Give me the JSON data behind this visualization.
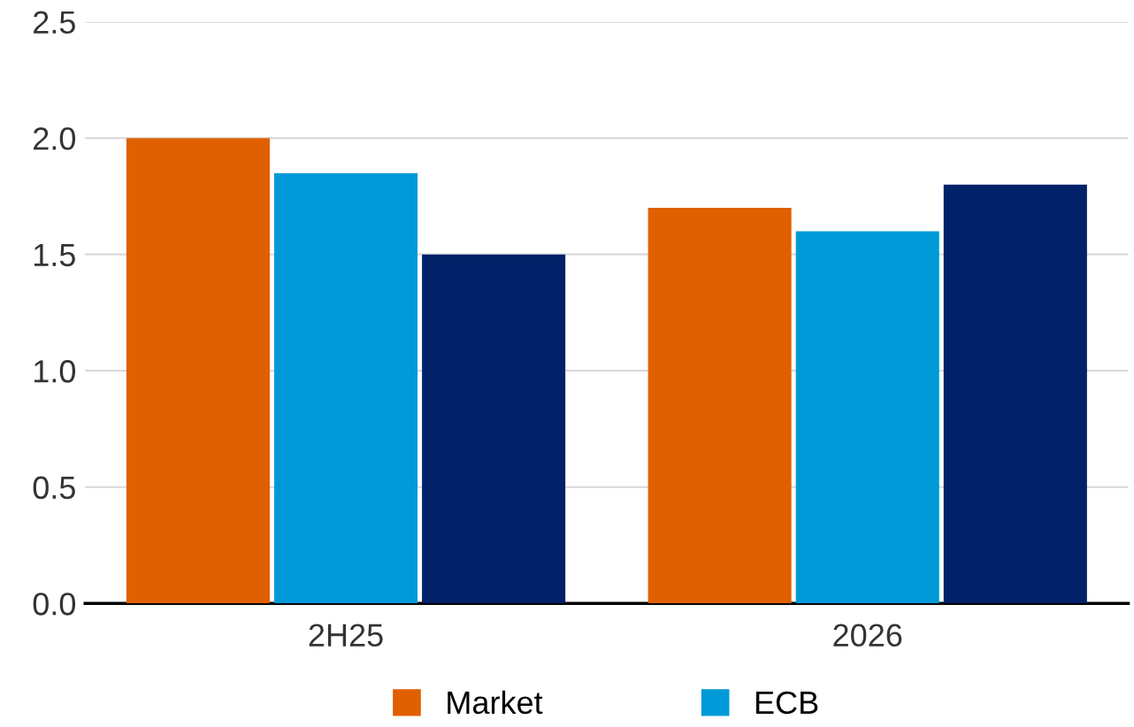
{
  "chart_data": {
    "type": "bar",
    "categories": [
      "2H25",
      "2026"
    ],
    "series": [
      {
        "name": "Market",
        "color": "#e06000",
        "values": [
          2.0,
          1.7
        ]
      },
      {
        "name": "ECB",
        "color": "#0099d8",
        "values": [
          1.85,
          1.6
        ]
      },
      {
        "color": "#012169",
        "values": [
          1.5,
          1.8
        ]
      }
    ],
    "ylim": [
      0,
      2.5
    ],
    "yticks": [
      {
        "value": 0,
        "label": "0.0"
      },
      {
        "value": 0.5,
        "label": "0.5"
      },
      {
        "value": 1,
        "label": "1.0"
      },
      {
        "value": 1.5,
        "label": "1.5"
      },
      {
        "value": 2,
        "label": "2.0"
      },
      {
        "value": 2.5,
        "label": "2.5"
      }
    ],
    "grid": "y",
    "legend": "bottom"
  }
}
